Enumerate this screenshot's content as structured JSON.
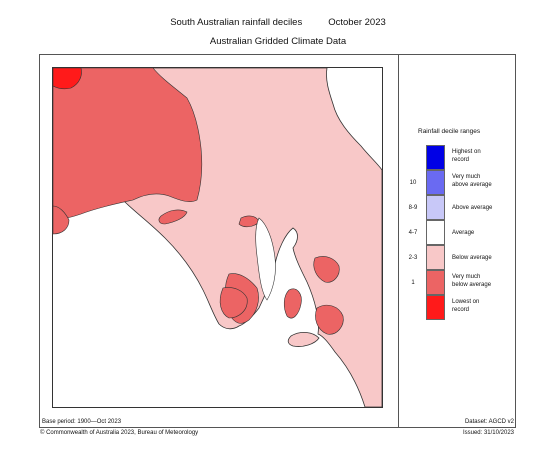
{
  "title": {
    "main": "South Australian rainfall deciles",
    "period": "October 2023",
    "subtitle": "Australian Gridded Climate Data"
  },
  "legend": {
    "title": "Rainfall decile ranges",
    "items": [
      {
        "label": "Highest on record",
        "line1": "Highest on",
        "line2": "record",
        "range": "",
        "color": "#0000e6"
      },
      {
        "label": "Very much above average",
        "line1": "Very much",
        "line2": "above average",
        "range": "10",
        "color": "#6a6af2"
      },
      {
        "label": "Above average",
        "line1": "Above average",
        "line2": "",
        "range": "8-9",
        "color": "#c8c8f8"
      },
      {
        "label": "Average",
        "line1": "Average",
        "line2": "",
        "range": "4-7",
        "color": "#ffffff"
      },
      {
        "label": "Below average",
        "line1": "Below average",
        "line2": "",
        "range": "2-3",
        "color": "#f8c8c8"
      },
      {
        "label": "Very much below average",
        "line1": "Very much",
        "line2": "below average",
        "range": "1",
        "color": "#ec6464"
      },
      {
        "label": "Lowest on record",
        "line1": "Lowest on",
        "line2": "record",
        "range": "",
        "color": "#ff1a1a"
      }
    ]
  },
  "footer": {
    "base_period": "Base period: 1900—Oct 2023",
    "dataset": "Dataset: AGCD v2",
    "copyright": "© Commonwealth of Australia 2023, Bureau of Meteorology",
    "issued": "Issued: 31/10/2023"
  },
  "map": {
    "region": "South Australia",
    "colors": {
      "sea": "#ffffff",
      "coast": "#333333"
    }
  }
}
